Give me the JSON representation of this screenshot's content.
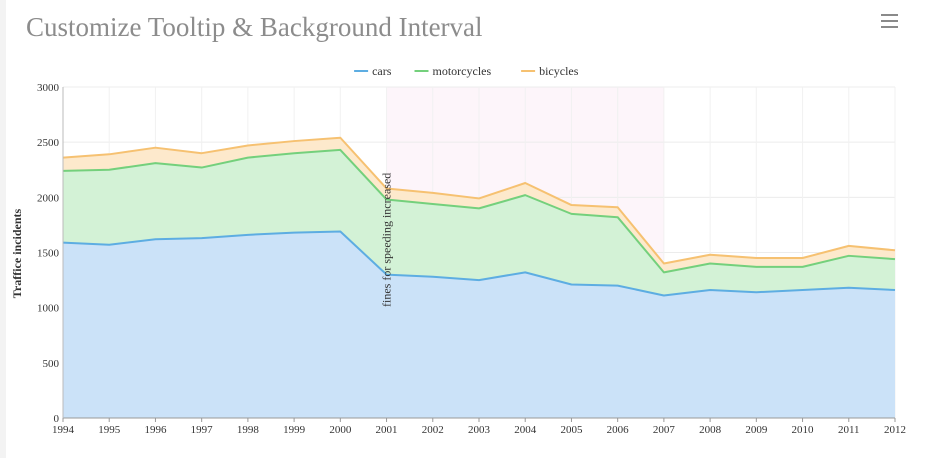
{
  "header": {
    "menu_icon": "hamburger-menu-icon"
  },
  "chart_data": {
    "type": "area",
    "stacked": true,
    "title": "Customize Tooltip & Background Interval",
    "xlabel": "",
    "ylabel": "Traffice incidents",
    "x": [
      "1994",
      "1995",
      "1996",
      "1997",
      "1998",
      "1999",
      "2000",
      "2001",
      "2002",
      "2003",
      "2004",
      "2005",
      "2006",
      "2007",
      "2008",
      "2009",
      "2010",
      "2011",
      "2012"
    ],
    "ylim": [
      0,
      3000
    ],
    "yticks": [
      0,
      500,
      1000,
      1500,
      2000,
      2500,
      3000
    ],
    "grid": true,
    "legend_position": "top-center",
    "series": [
      {
        "name": "cars",
        "color": "#5dade2",
        "fill": "#cbe2f8",
        "values": [
          1590,
          1570,
          1620,
          1630,
          1660,
          1680,
          1690,
          1300,
          1280,
          1250,
          1320,
          1210,
          1200,
          1110,
          1160,
          1140,
          1160,
          1180,
          1160
        ]
      },
      {
        "name": "motorcycles",
        "color": "#74d07c",
        "fill": "#d3f2d6",
        "values": [
          650,
          680,
          690,
          640,
          700,
          720,
          740,
          680,
          660,
          650,
          700,
          640,
          620,
          210,
          240,
          230,
          210,
          290,
          280
        ]
      },
      {
        "name": "bicycles",
        "color": "#f6c171",
        "fill": "#fde9cc",
        "values": [
          120,
          140,
          140,
          130,
          110,
          110,
          110,
          100,
          100,
          90,
          110,
          80,
          90,
          80,
          80,
          80,
          80,
          90,
          80
        ]
      }
    ],
    "plot_band": {
      "from": "2001",
      "to": "2007",
      "color": "#fdf5fa",
      "label": "fines for speeding increased"
    }
  }
}
